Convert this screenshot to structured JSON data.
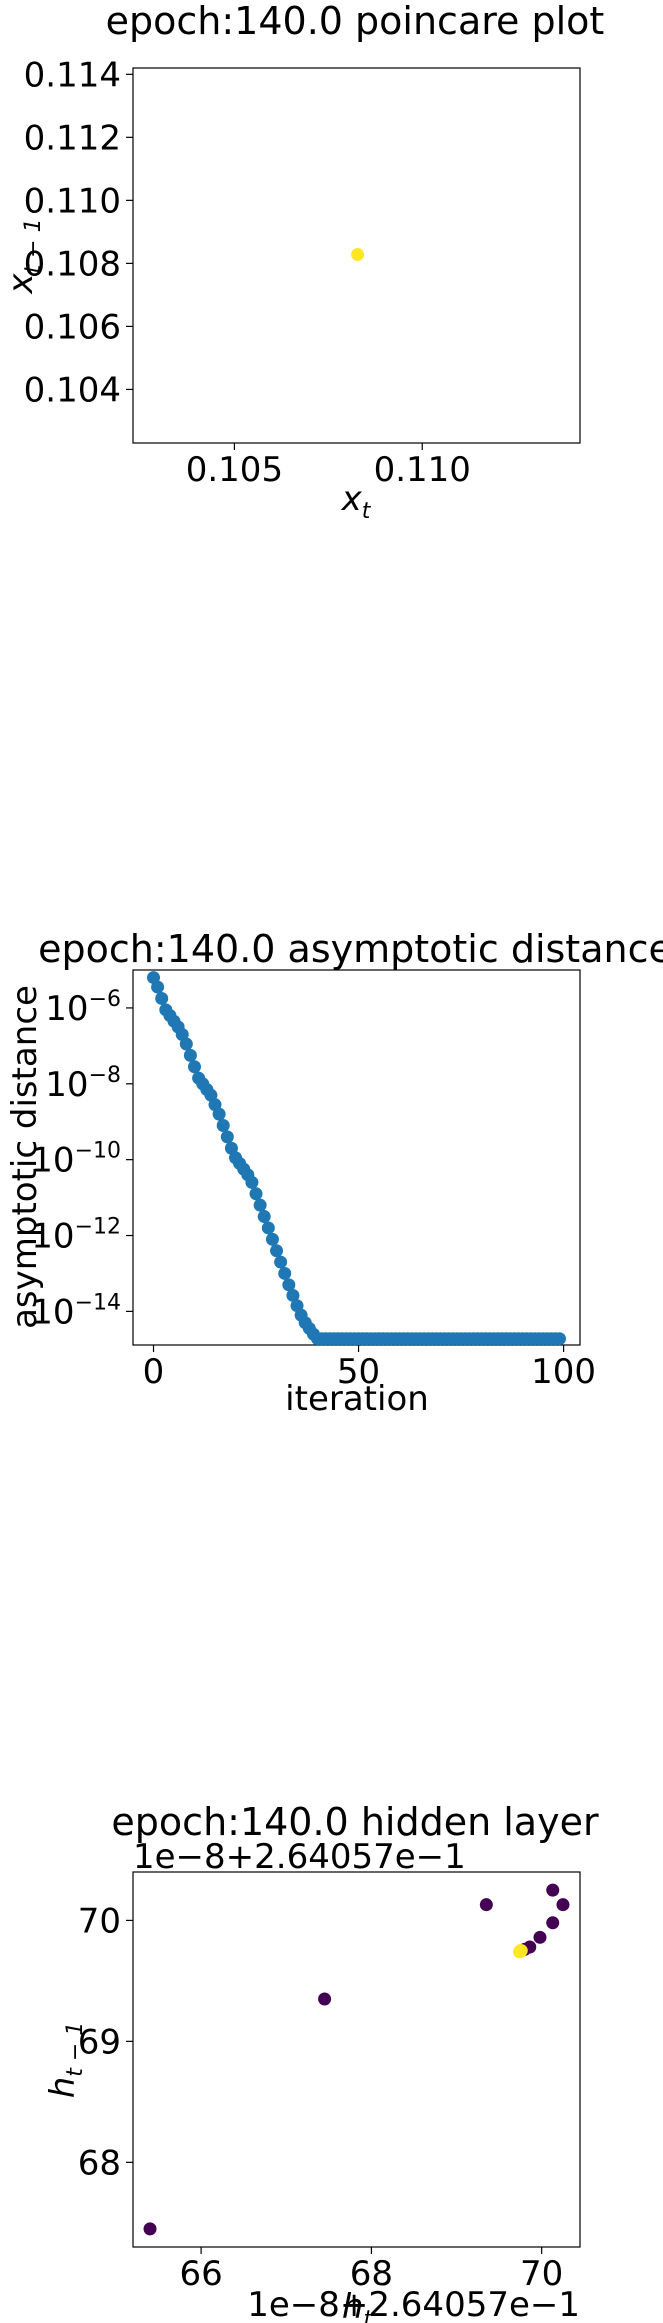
{
  "chart_data": [
    {
      "type": "scatter",
      "title": "epoch:140.0 poincare plot",
      "xlabel": "x_t",
      "ylabel": "x_{t-1}",
      "xlim": [
        0.1023,
        0.1142
      ],
      "ylim": [
        0.1023,
        0.1142
      ],
      "xticks": [
        0.105,
        0.11
      ],
      "xtick_labels": [
        "0.105",
        "0.110"
      ],
      "yticks": [
        0.104,
        0.106,
        0.108,
        0.11,
        0.112,
        0.114
      ],
      "ytick_labels": [
        "0.104",
        "0.106",
        "0.108",
        "0.110",
        "0.112",
        "0.114"
      ],
      "points": [
        {
          "x": 0.10828,
          "y": 0.10828,
          "color": "#fde725"
        }
      ],
      "grid": false,
      "legend": "none"
    },
    {
      "type": "scatter",
      "title": "epoch:140.0 asymptotic distance",
      "xlabel": "iteration",
      "ylabel": "asymptotic distance",
      "yscale": "log",
      "xlim": [
        -5,
        104
      ],
      "ylim": [
        1.3e-15,
        1e-05
      ],
      "xticks": [
        0,
        50,
        100
      ],
      "xtick_labels": [
        "0",
        "50",
        "100"
      ],
      "yticks": [
        1e-14,
        1e-12,
        1e-10,
        1e-08,
        1e-06
      ],
      "ytick_labels": [
        {
          "base": "10",
          "exp": "−14"
        },
        {
          "base": "10",
          "exp": "−12"
        },
        {
          "base": "10",
          "exp": "−10"
        },
        {
          "base": "10",
          "exp": "−8"
        },
        {
          "base": "10",
          "exp": "−6"
        }
      ],
      "color": "#1f77b4",
      "y_log10": [
        -5.2,
        -5.45,
        -5.75,
        -6.05,
        -6.2,
        -6.35,
        -6.5,
        -6.7,
        -6.95,
        -7.25,
        -7.55,
        -7.85,
        -8.0,
        -8.15,
        -8.3,
        -8.55,
        -8.8,
        -9.1,
        -9.4,
        -9.7,
        -9.95,
        -10.1,
        -10.25,
        -10.4,
        -10.6,
        -10.9,
        -11.2,
        -11.5,
        -11.8,
        -12.1,
        -12.4,
        -12.7,
        -13.0,
        -13.3,
        -13.58,
        -13.85,
        -14.1,
        -14.3,
        -14.45,
        -14.6,
        -14.72
      ],
      "y_floor_log10": -14.72,
      "n_points": 100,
      "grid": false,
      "legend": "none"
    },
    {
      "type": "scatter",
      "title": "epoch:140.0 hidden layer",
      "xlabel": "h_t",
      "ylabel": "h_{t-1}",
      "x_offset_text": "1e−8+2.64057e−1",
      "y_offset_text": "1e−8+2.64057e−1",
      "xlim": [
        65.2,
        70.45
      ],
      "ylim": [
        67.3,
        70.4
      ],
      "xticks": [
        66,
        68,
        70
      ],
      "xtick_labels": [
        "66",
        "68",
        "70"
      ],
      "yticks": [
        68,
        69,
        70
      ],
      "ytick_labels": [
        "68",
        "69",
        "70"
      ],
      "points": [
        {
          "x": 65.4,
          "y": 67.45,
          "color": "#440154"
        },
        {
          "x": 67.45,
          "y": 69.35,
          "color": "#440154"
        },
        {
          "x": 69.35,
          "y": 70.13,
          "color": "#440154"
        },
        {
          "x": 70.13,
          "y": 70.25,
          "color": "#440154"
        },
        {
          "x": 70.25,
          "y": 70.13,
          "color": "#440154"
        },
        {
          "x": 70.13,
          "y": 69.98,
          "color": "#440154"
        },
        {
          "x": 69.98,
          "y": 69.86,
          "color": "#440154"
        },
        {
          "x": 69.86,
          "y": 69.78,
          "color": "#440154"
        },
        {
          "x": 69.8,
          "y": 69.76,
          "color": "#440154"
        },
        {
          "x": 69.76,
          "y": 69.75,
          "color": "#fde725"
        },
        {
          "x": 69.75,
          "y": 69.75,
          "color": "#fde725"
        },
        {
          "x": 69.74,
          "y": 69.74,
          "color": "#fde725"
        }
      ],
      "grid": false,
      "legend": "none"
    }
  ]
}
